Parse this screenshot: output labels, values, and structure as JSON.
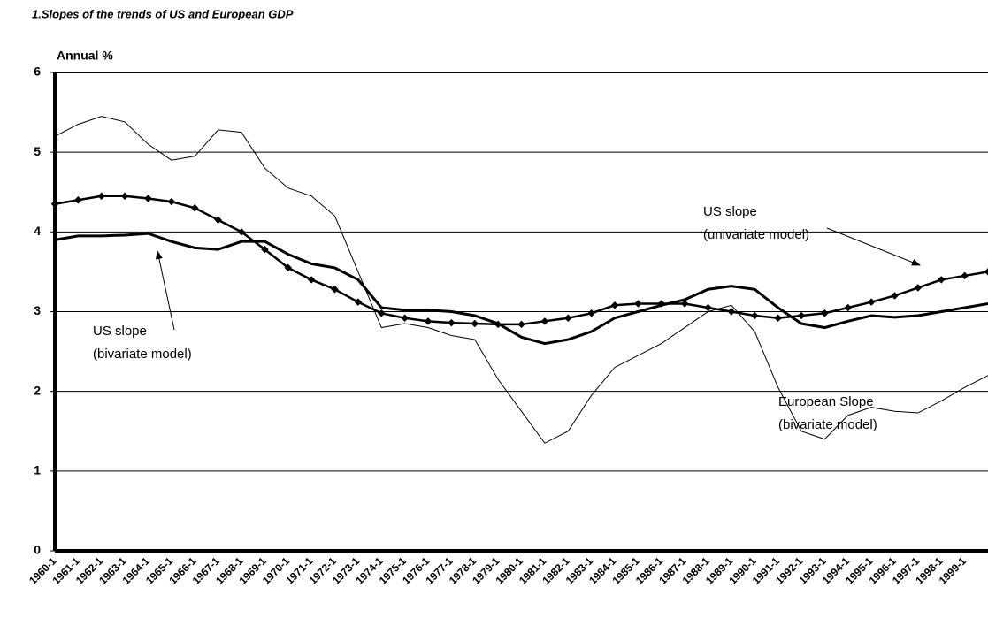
{
  "chart_data": {
    "type": "line",
    "title": "1.Slopes of the trends of US and European GDP",
    "y_label": "Annual %",
    "categories": [
      "1960-1",
      "1961-1",
      "1962-1",
      "1963-1",
      "1964-1",
      "1965-1",
      "1966-1",
      "1967-1",
      "1968-1",
      "1969-1",
      "1970-1",
      "1971-1",
      "1972-1",
      "1973-1",
      "1974-1",
      "1975-1",
      "1976-1",
      "1977-1",
      "1978-1",
      "1979-1",
      "1980-1",
      "1981-1",
      "1982-1",
      "1983-1",
      "1984-1",
      "1985-1",
      "1986-1",
      "1987-1",
      "1988-1",
      "1989-1",
      "1990-1",
      "1991-1",
      "1992-1",
      "1993-1",
      "1994-1",
      "1995-1",
      "1996-1",
      "1997-1",
      "1998-1",
      "1999-1",
      null
    ],
    "series": [
      {
        "name": "European Slope (bivariate model)",
        "color": "#000000",
        "style": "thin",
        "values": [
          5.2,
          5.35,
          5.45,
          5.38,
          5.1,
          4.9,
          4.95,
          5.28,
          5.25,
          4.8,
          4.55,
          4.45,
          4.2,
          3.5,
          2.8,
          2.85,
          2.8,
          2.7,
          2.65,
          2.15,
          1.75,
          1.35,
          1.5,
          1.95,
          2.3,
          2.45,
          2.6,
          2.8,
          3.0,
          3.08,
          2.75,
          2.05,
          1.5,
          1.4,
          1.7,
          1.8,
          1.75,
          1.73,
          1.88,
          2.05,
          2.2
        ]
      },
      {
        "name": "US slope (bivariate model)",
        "color": "#000000",
        "style": "thick",
        "values": [
          3.9,
          3.95,
          3.95,
          3.96,
          3.98,
          3.88,
          3.8,
          3.78,
          3.88,
          3.88,
          3.72,
          3.6,
          3.55,
          3.4,
          3.05,
          3.02,
          3.02,
          3.0,
          2.95,
          2.85,
          2.68,
          2.6,
          2.65,
          2.75,
          2.92,
          3.0,
          3.08,
          3.15,
          3.28,
          3.32,
          3.28,
          3.05,
          2.85,
          2.8,
          2.88,
          2.95,
          2.93,
          2.95,
          3.0,
          3.05,
          3.1
        ]
      },
      {
        "name": "US slope (univariate model)",
        "color": "#000000",
        "style": "markers",
        "values": [
          4.35,
          4.4,
          4.45,
          4.45,
          4.42,
          4.38,
          4.3,
          4.15,
          4.0,
          3.78,
          3.55,
          3.4,
          3.28,
          3.12,
          2.98,
          2.92,
          2.88,
          2.86,
          2.85,
          2.84,
          2.84,
          2.88,
          2.92,
          2.98,
          3.08,
          3.1,
          3.1,
          3.1,
          3.05,
          3.0,
          2.95,
          2.92,
          2.95,
          2.98,
          3.05,
          3.12,
          3.2,
          3.3,
          3.4,
          3.45,
          3.5
        ]
      }
    ],
    "annotations": [
      {
        "lines": [
          "US   slope",
          "(univariate model)"
        ]
      },
      {
        "lines": [
          "US slope",
          "(bivariate model)"
        ]
      },
      {
        "lines": [
          "European Slope",
          "(bivariate model)"
        ]
      }
    ],
    "ylim": [
      0,
      6
    ],
    "yticks": [
      0,
      1,
      2,
      3,
      4,
      5,
      6
    ],
    "grid": true
  }
}
